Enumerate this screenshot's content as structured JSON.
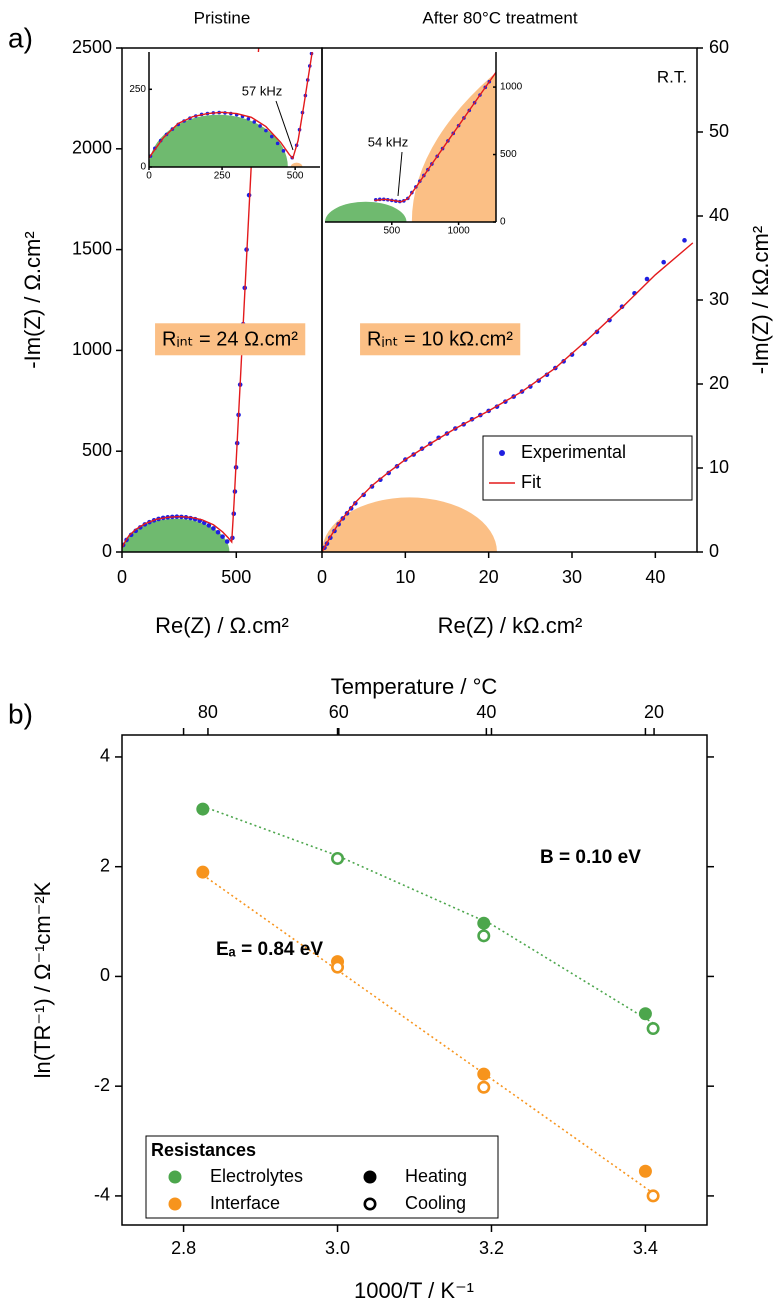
{
  "chart_data": [
    {
      "type": "scatter",
      "panel_label": "a)",
      "title": "Pristine",
      "xlabel": "Re(Z) / Ω.cm²",
      "ylabel": "-Im(Z) / Ω.cm²",
      "xlim": [
        0,
        875
      ],
      "xticks": [
        0,
        500
      ],
      "ylim": [
        0,
        2500
      ],
      "yticks": [
        0,
        500,
        1000,
        1500,
        2000,
        2500
      ],
      "annotation": "Rᵢₙₜ = 24 Ω.cm²",
      "annotation_color": "#fbbf85",
      "arcs": [
        {
          "color": "#6fba6f",
          "x": [
            0,
            470
          ],
          "height": 165
        }
      ],
      "series": [
        {
          "kind": "points",
          "color": "#1f1fe0",
          "x": [
            5,
            20,
            40,
            60,
            80,
            100,
            120,
            140,
            160,
            180,
            200,
            220,
            240,
            260,
            280,
            300,
            320,
            340,
            360,
            380,
            400,
            420,
            440,
            460,
            483,
            489,
            494,
            499,
            504,
            510,
            517,
            524,
            530,
            537,
            545,
            556
          ],
          "y": [
            35,
            60,
            85,
            105,
            122,
            137,
            148,
            157,
            164,
            169,
            172,
            174,
            175,
            174,
            172,
            168,
            163,
            155,
            145,
            132,
            117,
            98,
            76,
            52,
            70,
            190,
            300,
            420,
            540,
            680,
            830,
            990,
            1130,
            1310,
            1500,
            1770
          ]
        },
        {
          "kind": "line",
          "color": "#e31a1c",
          "x": [
            0,
            10,
            30,
            60,
            100,
            150,
            200,
            250,
            300,
            350,
            400,
            440,
            465,
            480,
            490,
            500,
            520,
            545,
            575,
            598
          ],
          "y": [
            20,
            45,
            80,
            112,
            140,
            162,
            172,
            176,
            172,
            160,
            135,
            100,
            70,
            50,
            240,
            460,
            900,
            1460,
            2130,
            2500
          ]
        }
      ],
      "inset": {
        "xlim": [
          0,
          585
        ],
        "ylim": [
          0,
          370
        ],
        "xticks": [
          0,
          250,
          500
        ],
        "yticks": [
          0,
          250
        ],
        "annotation": "57 kHz",
        "arcs": [
          {
            "color": "#6fba6f",
            "x": [
              0,
              475
            ],
            "height": 168
          },
          {
            "color": "#fbbf85",
            "x": [
              485,
              525
            ],
            "height": 14
          }
        ],
        "series": [
          {
            "kind": "points",
            "color": "#1f1fe0",
            "x": [
              5,
              20,
              40,
              60,
              80,
              100,
              120,
              140,
              160,
              180,
              200,
              220,
              240,
              260,
              280,
              300,
              320,
              340,
              360,
              380,
              400,
              420,
              440,
              460,
              490,
              505,
              515,
              525,
              535,
              543,
              550,
              556
            ],
            "y": [
              35,
              60,
              85,
              105,
              122,
              137,
              148,
              157,
              164,
              169,
              172,
              174,
              175,
              174,
              172,
              168,
              163,
              155,
              145,
              132,
              117,
              98,
              76,
              52,
              30,
              70,
              120,
              175,
              230,
              280,
              325,
              365
            ]
          },
          {
            "kind": "line",
            "color": "#e31a1c",
            "x": [
              0,
              50,
              100,
              150,
              200,
              250,
              300,
              350,
              400,
              450,
              480,
              492,
              510,
              530,
              560
            ],
            "y": [
              30,
              95,
              140,
              162,
              172,
              176,
              172,
              160,
              130,
              80,
              40,
              28,
              85,
              200,
              380
            ]
          }
        ]
      }
    },
    {
      "type": "scatter",
      "title": "After 80°C treatment",
      "note": "R.T.",
      "xlabel": "Re(Z) / kΩ.cm²",
      "ylabel": "-Im(Z) / kΩ.cm²",
      "xlim": [
        0,
        45
      ],
      "xticks": [
        0,
        10,
        20,
        30,
        40
      ],
      "ylim": [
        0,
        60
      ],
      "yticks": [
        0,
        10,
        20,
        30,
        40,
        50,
        60
      ],
      "annotation": "Rᵢₙₜ = 10 kΩ.cm²",
      "annotation_color": "#fbbf85",
      "legend": "lower right",
      "arcs": [
        {
          "color": "#fbbf85",
          "x": [
            0,
            21
          ],
          "height": 6.5
        }
      ],
      "series": [
        {
          "name": "Experimental",
          "kind": "points",
          "color": "#1f1fe0",
          "x": [
            0.3,
            0.6,
            1,
            1.5,
            2,
            2.5,
            3,
            3.5,
            4,
            5,
            6,
            7,
            8,
            9,
            10,
            11,
            12,
            13,
            14,
            15,
            16,
            17,
            18,
            19,
            20,
            21,
            22,
            23,
            24,
            25,
            26,
            27,
            28,
            29,
            30,
            31.5,
            33,
            34.5,
            36,
            37.5,
            39,
            41,
            43.5
          ],
          "y": [
            0.5,
            1,
            1.7,
            2.5,
            3.3,
            4,
            4.6,
            5.2,
            5.8,
            6.8,
            7.8,
            8.6,
            9.4,
            10.2,
            11,
            11.6,
            12.3,
            12.9,
            13.6,
            14.1,
            14.7,
            15.2,
            15.8,
            16.3,
            16.8,
            17.3,
            17.9,
            18.5,
            19.1,
            19.7,
            20.4,
            21.1,
            21.9,
            22.7,
            23.5,
            24.8,
            26.2,
            27.6,
            29.2,
            30.8,
            32.5,
            34.5,
            37.1
          ]
        },
        {
          "name": "Fit",
          "kind": "line",
          "color": "#e31a1c",
          "x": [
            0,
            1,
            2,
            4,
            6,
            8,
            10,
            13,
            16,
            20,
            24,
            28,
            32,
            36,
            40,
            44.5
          ],
          "y": [
            0,
            1.8,
            3.4,
            5.9,
            7.9,
            9.5,
            11,
            12.9,
            14.7,
            16.8,
            19.1,
            21.9,
            25.4,
            29.1,
            33,
            36.8
          ]
        }
      ],
      "inset": {
        "xlim": [
          0,
          1280
        ],
        "ylim": [
          0,
          1260
        ],
        "xticks": [
          500,
          1000
        ],
        "yticks": [
          0,
          500,
          1000
        ],
        "annotation": "54 kHz",
        "arcs": [
          {
            "color": "#6fba6f",
            "x": [
              0,
              610
            ],
            "height": 150
          },
          {
            "color": "#fbbf85",
            "x": [
              650,
              21000
            ],
            "height": 3200
          }
        ],
        "series": [
          {
            "kind": "points",
            "color": "#1f1fe0",
            "x": [
              380,
              410,
              440,
              470,
              500,
              530,
              560,
              590,
              620,
              650,
              680,
              710,
              740,
              770,
              800,
              840,
              880,
              920,
              960,
              1000,
              1040,
              1080,
              1120,
              1160,
              1200,
              1230
            ],
            "y": [
              165,
              168,
              168,
              165,
              160,
              155,
              152,
              157,
              175,
              218,
              260,
              303,
              345,
              388,
              430,
              487,
              544,
              601,
              657,
              714,
              771,
              827,
              884,
              941,
              998,
              1040
            ]
          },
          {
            "kind": "line",
            "color": "#e31a1c",
            "x": [
              370,
              450,
              520,
              570,
              620,
              700,
              800,
              900,
              1000,
              1100,
              1200,
              1280
            ],
            "y": [
              160,
              168,
              158,
              150,
              172,
              285,
              430,
              572,
              714,
              856,
              998,
              1110
            ]
          }
        ]
      }
    },
    {
      "type": "scatter",
      "panel_label": "b)",
      "xlabel": "1000/T / K⁻¹",
      "ylabel": "ln(TR⁻¹) / Ω⁻¹cm⁻²K",
      "x2label": "Temperature / °C",
      "xlim": [
        2.72,
        3.48
      ],
      "xticks": [
        2.8,
        {
          "value": 3,
          "label": "3.0"
        },
        3.2,
        3.4
      ],
      "x2ticks": [
        80,
        60,
        40,
        20
      ],
      "ylim": [
        -4.53,
        4.4
      ],
      "yticks": [
        -4,
        -2,
        0,
        2,
        4
      ],
      "legend": "lower left",
      "legend_title": "Resistances",
      "groups": [
        {
          "name": "Electrolytes",
          "color": "#4ca64c",
          "heating": {
            "x": [
              2.825,
              3.19,
              3.4
            ],
            "y": [
              3.05,
              0.97,
              -0.68
            ]
          },
          "cooling": {
            "x": [
              3.0,
              3.19,
              3.41
            ],
            "y": [
              2.15,
              0.74,
              -0.95
            ]
          },
          "fit": {
            "x": [
              2.825,
              3.0,
              3.2,
              3.41
            ],
            "y": [
              3.1,
              2.2,
              0.95,
              -0.85
            ]
          }
        },
        {
          "name": "Interface",
          "color": "#f7941d",
          "heating": {
            "x": [
              2.825,
              3.0,
              3.19,
              3.4
            ],
            "y": [
              1.9,
              0.27,
              -1.78,
              -3.55
            ]
          },
          "cooling": {
            "x": [
              3.0,
              3.19,
              3.41
            ],
            "y": [
              0.17,
              -2.02,
              -4.0
            ]
          },
          "fit": {
            "x": [
              2.825,
              3.41
            ],
            "y": [
              1.85,
              -3.95
            ]
          }
        }
      ],
      "markers": [
        {
          "name": "Heating",
          "filled": true
        },
        {
          "name": "Cooling",
          "filled": false
        }
      ],
      "annotations": [
        {
          "text": "B = 0.10 eV",
          "color": "#4ca64c"
        },
        {
          "text": "Eₐ = 0.84 eV",
          "color": "#f7941d"
        }
      ]
    }
  ]
}
